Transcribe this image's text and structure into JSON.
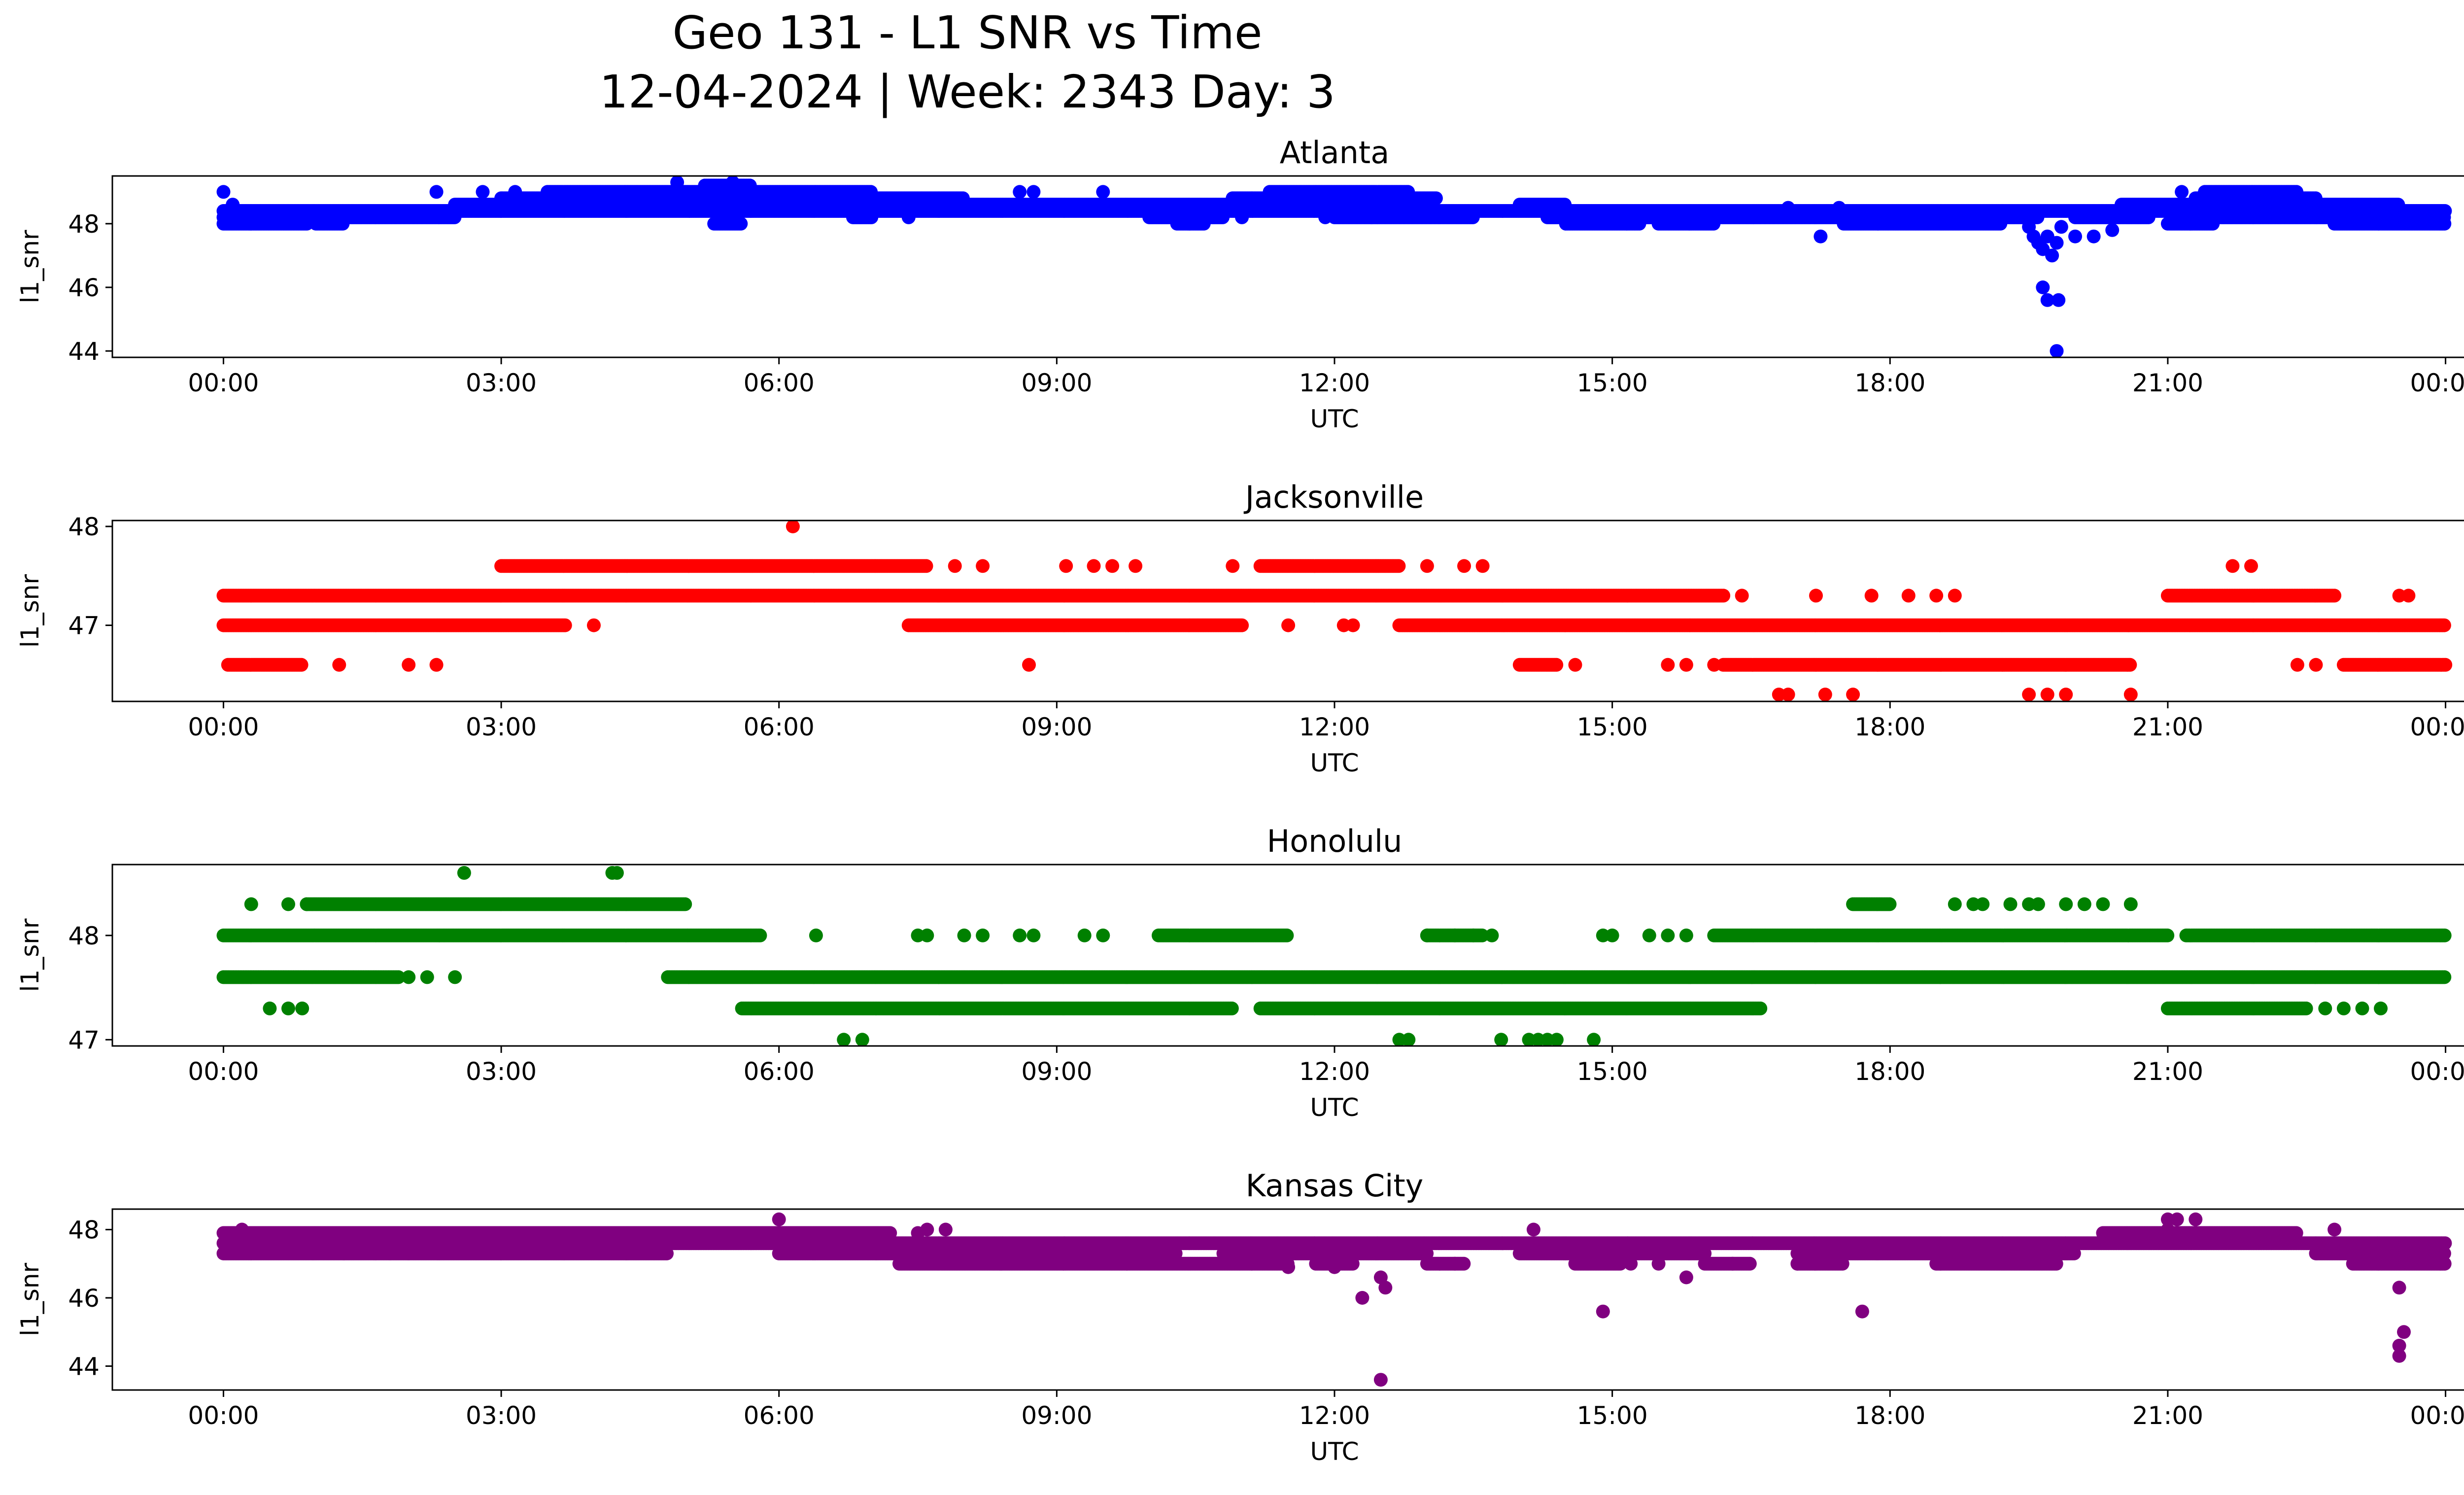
{
  "figure": {
    "title_line1": "Geo 131 - L1 SNR vs Time",
    "title_line2": "12-04-2024 | Week: 2343 Day: 3"
  },
  "chart_data": [
    {
      "type": "scatter",
      "title": "Atlanta",
      "xlabel": "UTC",
      "ylabel": "l1_snr",
      "color": "#0000ff",
      "xlim": [
        -1.2,
        25.2
      ],
      "ylim": [
        43.8,
        49.5
      ],
      "xticks": [
        0,
        3,
        6,
        9,
        12,
        15,
        18,
        21,
        24
      ],
      "xtick_labels": [
        "00:00",
        "03:00",
        "06:00",
        "09:00",
        "12:00",
        "15:00",
        "18:00",
        "21:00",
        "00:00"
      ],
      "yticks": [
        44,
        46,
        48
      ],
      "ytick_labels": [
        "44",
        "46",
        "48"
      ],
      "bands": [
        {
          "level": 48.0,
          "ranges": [
            [
              0.0,
              0.9
            ],
            [
              1.0,
              1.3
            ],
            [
              5.3,
              5.6
            ],
            [
              10.3,
              10.6
            ],
            [
              14.5,
              15.3
            ],
            [
              15.5,
              16.1
            ],
            [
              17.5,
              19.2
            ],
            [
              21.0,
              21.5
            ],
            [
              22.8,
              24.0
            ]
          ]
        },
        {
          "level": 48.2,
          "ranges": [
            [
              0.0,
              1.0
            ],
            [
              1.2,
              2.5
            ],
            [
              6.8,
              7.0
            ],
            [
              10.0,
              10.8
            ],
            [
              12.0,
              13.5
            ],
            [
              14.3,
              19.6
            ],
            [
              20.0,
              20.8
            ],
            [
              21.5,
              24.0
            ]
          ]
        },
        {
          "level": 48.4,
          "ranges": [
            [
              0.0,
              24.0
            ]
          ]
        },
        {
          "level": 48.6,
          "ranges": [
            [
              2.5,
              13.0
            ],
            [
              14.0,
              14.5
            ],
            [
              20.5,
              23.5
            ]
          ]
        },
        {
          "level": 48.8,
          "ranges": [
            [
              3.0,
              8.0
            ],
            [
              10.9,
              13.1
            ],
            [
              21.3,
              22.6
            ]
          ]
        },
        {
          "level": 49.0,
          "ranges": [
            [
              3.5,
              7.0
            ],
            [
              11.3,
              12.8
            ],
            [
              21.4,
              22.4
            ]
          ]
        },
        {
          "level": 49.2,
          "ranges": [
            [
              5.2,
              5.7
            ]
          ]
        }
      ],
      "points": [
        [
          0.0,
          49.0
        ],
        [
          0.1,
          48.6
        ],
        [
          2.3,
          49.0
        ],
        [
          2.8,
          49.0
        ],
        [
          3.15,
          49.0
        ],
        [
          4.9,
          49.3
        ],
        [
          5.5,
          49.3
        ],
        [
          7.4,
          48.2
        ],
        [
          8.6,
          49.0
        ],
        [
          8.75,
          49.0
        ],
        [
          9.5,
          49.0
        ],
        [
          11.0,
          48.2
        ],
        [
          11.9,
          48.2
        ],
        [
          12.4,
          48.2
        ],
        [
          16.9,
          48.5
        ],
        [
          17.25,
          47.6
        ],
        [
          17.45,
          48.5
        ],
        [
          19.5,
          47.9
        ],
        [
          19.55,
          47.6
        ],
        [
          19.6,
          47.4
        ],
        [
          19.65,
          47.2
        ],
        [
          19.7,
          47.6
        ],
        [
          19.75,
          47.0
        ],
        [
          19.8,
          47.4
        ],
        [
          19.85,
          47.9
        ],
        [
          19.65,
          46.0
        ],
        [
          19.7,
          45.6
        ],
        [
          19.82,
          45.6
        ],
        [
          19.8,
          44.0
        ],
        [
          20.0,
          47.6
        ],
        [
          20.2,
          47.6
        ],
        [
          20.4,
          47.8
        ],
        [
          21.15,
          49.0
        ]
      ]
    },
    {
      "type": "scatter",
      "title": "Jacksonville",
      "xlabel": "UTC",
      "ylabel": "l1_snr",
      "color": "#ff0000",
      "xlim": [
        -1.2,
        25.2
      ],
      "ylim": [
        46.23,
        48.06
      ],
      "xticks": [
        0,
        3,
        6,
        9,
        12,
        15,
        18,
        21,
        24
      ],
      "xtick_labels": [
        "00:00",
        "03:00",
        "06:00",
        "09:00",
        "12:00",
        "15:00",
        "18:00",
        "21:00",
        "00:00"
      ],
      "yticks": [
        47,
        48
      ],
      "ytick_labels": [
        "47",
        "48"
      ],
      "bands": [
        {
          "level": 46.6,
          "ranges": [
            [
              0.05,
              0.85
            ],
            [
              14.0,
              14.4
            ],
            [
              16.2,
              20.6
            ],
            [
              22.9,
              24.0
            ]
          ]
        },
        {
          "level": 47.0,
          "ranges": [
            [
              0.0,
              3.7
            ],
            [
              7.4,
              11.0
            ],
            [
              12.7,
              24.0
            ]
          ]
        },
        {
          "level": 47.3,
          "ranges": [
            [
              0.0,
              16.2
            ],
            [
              21.0,
              22.8
            ]
          ]
        },
        {
          "level": 47.6,
          "ranges": [
            [
              3.0,
              7.6
            ],
            [
              11.2,
              12.7
            ]
          ]
        }
      ],
      "points": [
        [
          1.25,
          46.6
        ],
        [
          2.0,
          46.6
        ],
        [
          2.3,
          46.6
        ],
        [
          4.0,
          47.0
        ],
        [
          6.15,
          48.0
        ],
        [
          7.9,
          47.6
        ],
        [
          8.2,
          47.6
        ],
        [
          8.7,
          46.6
        ],
        [
          9.1,
          47.6
        ],
        [
          9.4,
          47.6
        ],
        [
          9.6,
          47.6
        ],
        [
          9.85,
          47.6
        ],
        [
          10.9,
          47.6
        ],
        [
          11.5,
          47.0
        ],
        [
          12.1,
          47.0
        ],
        [
          12.2,
          47.0
        ],
        [
          13.0,
          47.6
        ],
        [
          13.4,
          47.6
        ],
        [
          13.6,
          47.6
        ],
        [
          14.6,
          46.6
        ],
        [
          15.6,
          46.6
        ],
        [
          15.8,
          46.6
        ],
        [
          16.1,
          46.6
        ],
        [
          16.4,
          47.3
        ],
        [
          16.8,
          46.3
        ],
        [
          16.9,
          46.3
        ],
        [
          17.2,
          47.3
        ],
        [
          17.3,
          46.3
        ],
        [
          17.6,
          46.3
        ],
        [
          17.8,
          47.3
        ],
        [
          18.2,
          47.3
        ],
        [
          18.5,
          47.3
        ],
        [
          18.7,
          47.3
        ],
        [
          19.5,
          46.3
        ],
        [
          19.7,
          46.3
        ],
        [
          19.9,
          46.3
        ],
        [
          20.6,
          46.3
        ],
        [
          21.7,
          47.6
        ],
        [
          21.9,
          47.6
        ],
        [
          22.4,
          46.6
        ],
        [
          22.6,
          46.6
        ],
        [
          23.5,
          47.3
        ],
        [
          23.6,
          47.3
        ]
      ]
    },
    {
      "type": "scatter",
      "title": "Honolulu",
      "xlabel": "UTC",
      "ylabel": "l1_snr",
      "color": "#008000",
      "xlim": [
        -1.2,
        25.2
      ],
      "ylim": [
        46.94,
        48.68
      ],
      "xticks": [
        0,
        3,
        6,
        9,
        12,
        15,
        18,
        21,
        24
      ],
      "xtick_labels": [
        "00:00",
        "03:00",
        "06:00",
        "09:00",
        "12:00",
        "15:00",
        "18:00",
        "21:00",
        "00:00"
      ],
      "yticks": [
        47,
        48
      ],
      "ytick_labels": [
        "47",
        "48"
      ],
      "bands": [
        {
          "level": 47.3,
          "ranges": [
            [
              5.6,
              10.9
            ],
            [
              11.2,
              16.6
            ],
            [
              21.0,
              22.5
            ]
          ]
        },
        {
          "level": 47.6,
          "ranges": [
            [
              0.0,
              1.9
            ],
            [
              4.8,
              24.0
            ]
          ]
        },
        {
          "level": 48.0,
          "ranges": [
            [
              0.0,
              5.8
            ],
            [
              10.1,
              11.5
            ],
            [
              13.0,
              13.6
            ],
            [
              16.1,
              21.0
            ],
            [
              21.2,
              24.0
            ]
          ]
        },
        {
          "level": 48.3,
          "ranges": [
            [
              0.9,
              5.0
            ],
            [
              17.6,
              18.0
            ]
          ]
        }
      ],
      "points": [
        [
          0.3,
          48.3
        ],
        [
          0.7,
          48.3
        ],
        [
          0.9,
          48.3
        ],
        [
          0.5,
          47.3
        ],
        [
          0.7,
          47.3
        ],
        [
          0.85,
          47.3
        ],
        [
          2.0,
          47.6
        ],
        [
          2.2,
          47.6
        ],
        [
          2.5,
          47.6
        ],
        [
          2.6,
          48.6
        ],
        [
          4.2,
          48.6
        ],
        [
          4.25,
          48.6
        ],
        [
          6.4,
          48.0
        ],
        [
          6.7,
          47.0
        ],
        [
          6.9,
          47.0
        ],
        [
          7.5,
          48.0
        ],
        [
          7.6,
          48.0
        ],
        [
          8.0,
          48.0
        ],
        [
          8.2,
          48.0
        ],
        [
          8.6,
          48.0
        ],
        [
          8.75,
          48.0
        ],
        [
          9.3,
          48.0
        ],
        [
          9.5,
          48.0
        ],
        [
          12.8,
          47.0
        ],
        [
          12.7,
          47.0
        ],
        [
          13.0,
          48.0
        ],
        [
          13.3,
          48.0
        ],
        [
          13.5,
          48.0
        ],
        [
          13.7,
          48.0
        ],
        [
          13.8,
          47.0
        ],
        [
          14.2,
          47.0
        ],
        [
          14.3,
          47.0
        ],
        [
          14.4,
          47.0
        ],
        [
          14.1,
          47.0
        ],
        [
          14.8,
          47.0
        ],
        [
          15.8,
          48.0
        ],
        [
          15.6,
          48.0
        ],
        [
          15.4,
          48.0
        ],
        [
          14.9,
          48.0
        ],
        [
          15.0,
          48.0
        ],
        [
          18.7,
          48.3
        ],
        [
          18.9,
          48.3
        ],
        [
          19.0,
          48.3
        ],
        [
          19.3,
          48.3
        ],
        [
          19.5,
          48.3
        ],
        [
          19.6,
          48.3
        ],
        [
          19.9,
          48.3
        ],
        [
          20.1,
          48.3
        ],
        [
          20.3,
          48.3
        ],
        [
          20.6,
          48.3
        ],
        [
          22.7,
          47.3
        ],
        [
          22.9,
          47.3
        ],
        [
          23.1,
          47.3
        ],
        [
          23.3,
          47.3
        ]
      ]
    },
    {
      "type": "scatter",
      "title": "Kansas City",
      "xlabel": "UTC",
      "ylabel": "l1_snr",
      "color": "#800080",
      "xlim": [
        -1.2,
        25.2
      ],
      "ylim": [
        43.3,
        48.6
      ],
      "xticks": [
        0,
        3,
        6,
        9,
        12,
        15,
        18,
        21,
        24
      ],
      "xtick_labels": [
        "00:00",
        "03:00",
        "06:00",
        "09:00",
        "12:00",
        "15:00",
        "18:00",
        "21:00",
        "00:00"
      ],
      "yticks": [
        44,
        46,
        48
      ],
      "ytick_labels": [
        "44",
        "46",
        "48"
      ],
      "bands": [
        {
          "level": 47.3,
          "ranges": [
            [
              0.0,
              4.8
            ],
            [
              6.0,
              10.3
            ],
            [
              10.8,
              13.0
            ],
            [
              14.0,
              16.0
            ],
            [
              17.0,
              20.0
            ],
            [
              22.6,
              24.0
            ]
          ]
        },
        {
          "level": 47.6,
          "ranges": [
            [
              0.0,
              24.0
            ]
          ]
        },
        {
          "level": 47.9,
          "ranges": [
            [
              0.0,
              7.2
            ],
            [
              20.3,
              22.4
            ]
          ]
        },
        {
          "level": 47.0,
          "ranges": [
            [
              7.3,
              11.5
            ],
            [
              11.8,
              12.2
            ],
            [
              13.0,
              13.4
            ],
            [
              14.6,
              15.1
            ],
            [
              16.0,
              16.5
            ],
            [
              17.0,
              17.5
            ],
            [
              18.5,
              19.8
            ],
            [
              23.0,
              24.0
            ]
          ]
        }
      ],
      "points": [
        [
          6.0,
          48.3
        ],
        [
          0.2,
          48.0
        ],
        [
          1.3,
          47.3
        ],
        [
          1.8,
          47.3
        ],
        [
          2.0,
          47.3
        ],
        [
          7.5,
          47.9
        ],
        [
          7.6,
          48.0
        ],
        [
          7.8,
          48.0
        ],
        [
          11.5,
          46.9
        ],
        [
          12.0,
          46.9
        ],
        [
          12.3,
          46.0
        ],
        [
          12.5,
          46.6
        ],
        [
          12.55,
          46.3
        ],
        [
          12.5,
          43.6
        ],
        [
          13.3,
          47.0
        ],
        [
          14.15,
          48.0
        ],
        [
          14.9,
          45.6
        ],
        [
          15.2,
          47.0
        ],
        [
          15.5,
          47.0
        ],
        [
          15.8,
          46.6
        ],
        [
          16.3,
          47.0
        ],
        [
          17.0,
          47.0
        ],
        [
          17.7,
          45.6
        ],
        [
          21.0,
          48.3
        ],
        [
          21.1,
          48.3
        ],
        [
          21.3,
          48.3
        ],
        [
          21.0,
          48.0
        ],
        [
          22.8,
          48.0
        ],
        [
          23.5,
          46.3
        ],
        [
          23.55,
          45.0
        ],
        [
          23.5,
          44.6
        ],
        [
          23.5,
          44.3
        ]
      ]
    }
  ]
}
